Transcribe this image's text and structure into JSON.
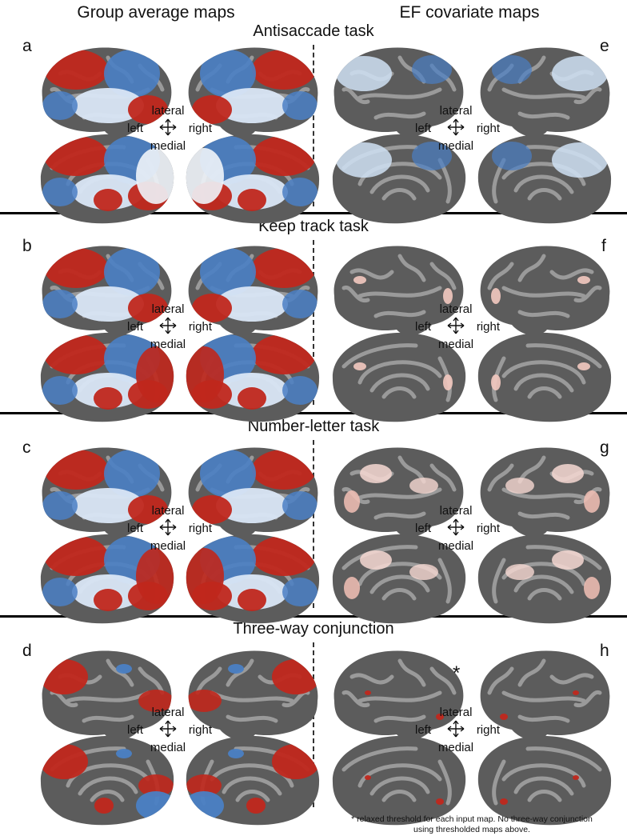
{
  "columns": {
    "left": "Group average maps",
    "right": "EF covariate maps"
  },
  "sections": [
    {
      "title": "Antisaccade task",
      "left_label": "a",
      "right_label": "e"
    },
    {
      "title": "Keep track task",
      "left_label": "b",
      "right_label": "f"
    },
    {
      "title": "Number-letter task",
      "left_label": "c",
      "right_label": "g"
    },
    {
      "title": "Three-way conjunction",
      "left_label": "d",
      "right_label": "h"
    }
  ],
  "orientation": {
    "lateral": "lateral",
    "medial": "medial",
    "left": "left",
    "right": "right"
  },
  "asterisk": "*",
  "footnote": {
    "line1": "* relaxed threshold for each input map.  No three-way conjunction",
    "line2": "using thresholded maps above."
  },
  "colors": {
    "activation_red": "#c0271c",
    "deactivation_blue": "#4a7fc4",
    "cortex_gray": "#5c5c5c",
    "sulci_light_gray": "#9a9a9a"
  }
}
